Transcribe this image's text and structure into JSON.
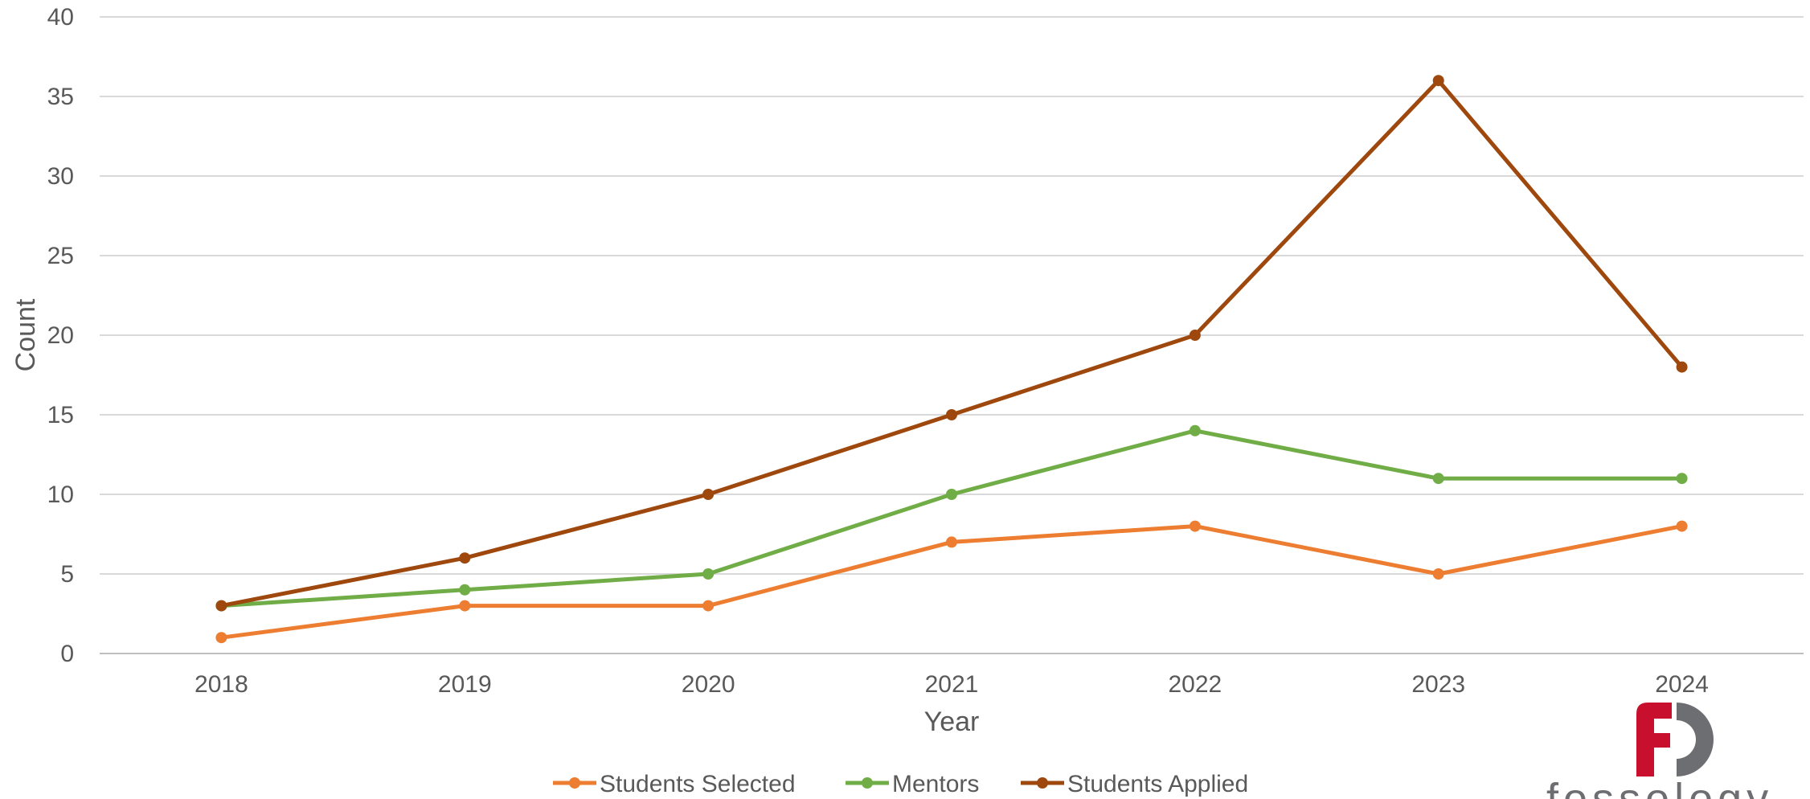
{
  "chart_data": {
    "type": "line",
    "categories": [
      "2018",
      "2019",
      "2020",
      "2021",
      "2022",
      "2023",
      "2024"
    ],
    "series": [
      {
        "name": "Students Selected",
        "color": "#ED7D31",
        "values": [
          1,
          3,
          3,
          7,
          8,
          5,
          8
        ]
      },
      {
        "name": "Mentors",
        "color": "#70AD47",
        "values": [
          3,
          4,
          5,
          10,
          14,
          11,
          11
        ]
      },
      {
        "name": "Students Applied",
        "color": "#9E480E",
        "values": [
          3,
          6,
          10,
          15,
          20,
          36,
          18
        ]
      }
    ],
    "xlabel": "Year",
    "ylabel": "Count",
    "ylim": [
      0,
      40
    ],
    "yticks": [
      "0",
      "5",
      "10",
      "15",
      "20",
      "25",
      "30",
      "35",
      "40"
    ],
    "grid": true,
    "legend": "bottom"
  },
  "logo": {
    "name": "fossology-logo",
    "text": "fossology",
    "colors": {
      "red": "#C8102E",
      "gray": "#6D6E71"
    }
  }
}
